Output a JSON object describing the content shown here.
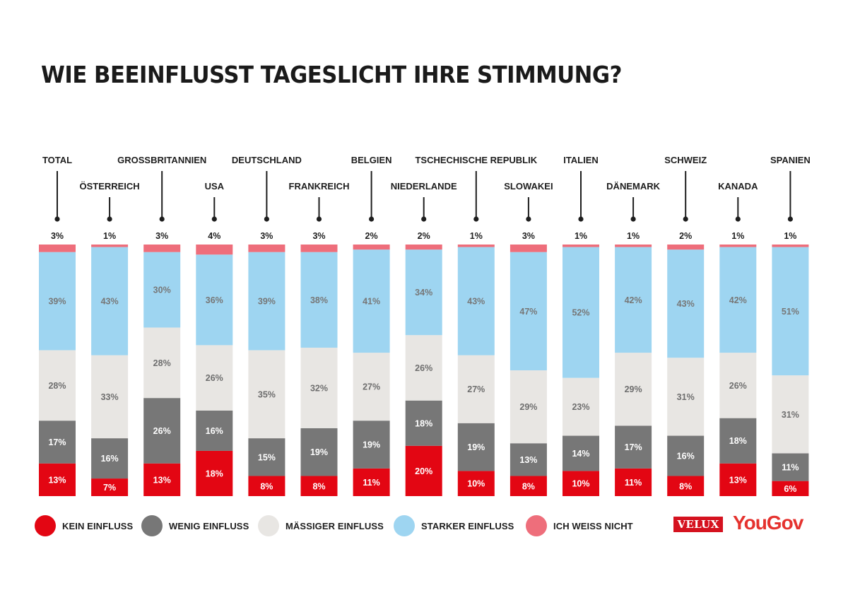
{
  "header": {
    "title": "WIE BEEINFLUSST TAGESLICHT IHRE STIMMUNG?"
  },
  "colors": {
    "kein": "#e30613",
    "wenig": "#777777",
    "maessig": "#e8e6e3",
    "stark": "#9ed5f1",
    "weissnicht": "#ee6e7b"
  },
  "legend": [
    {
      "key": "kein",
      "label": "KEIN EINFLUSS"
    },
    {
      "key": "wenig",
      "label": "WENIG EINFLUSS"
    },
    {
      "key": "maessig",
      "label": "MÄSSIGER EINFLUSS"
    },
    {
      "key": "stark",
      "label": "STARKER EINFLUSS"
    },
    {
      "key": "weissnicht",
      "label": "ICH WEISS NICHT"
    }
  ],
  "logos": {
    "velux": "VELUX",
    "yougov": "YouGov"
  },
  "chart_data": {
    "type": "bar",
    "stacked": true,
    "orientation": "vertical",
    "title": "WIE BEEINFLUSST TAGESLICHT IHRE STIMMUNG?",
    "unit": "%",
    "categories": [
      "TOTAL",
      "ÖSTERREICH",
      "GROSSBRITANNIEN",
      "USA",
      "DEUTSCHLAND",
      "FRANKREICH",
      "BELGIEN",
      "NIEDERLANDE",
      "TSCHECHISCHE REPUBLIK",
      "SLOWAKEI",
      "ITALIEN",
      "DÄNEMARK",
      "SCHWEIZ",
      "KANADA",
      "SPANIEN"
    ],
    "series": [
      {
        "key": "kein",
        "name": "KEIN EINFLUSS",
        "values": [
          13,
          7,
          13,
          18,
          8,
          8,
          11,
          20,
          10,
          8,
          10,
          11,
          8,
          13,
          6
        ]
      },
      {
        "key": "wenig",
        "name": "WENIG EINFLUSS",
        "values": [
          17,
          16,
          26,
          16,
          15,
          19,
          19,
          18,
          19,
          13,
          14,
          17,
          16,
          18,
          11
        ]
      },
      {
        "key": "maessig",
        "name": "MÄSSIGER EINFLUSS",
        "values": [
          28,
          33,
          28,
          26,
          35,
          32,
          27,
          26,
          27,
          29,
          23,
          29,
          31,
          26,
          31
        ]
      },
      {
        "key": "stark",
        "name": "STARKER EINFLUSS",
        "values": [
          39,
          43,
          30,
          36,
          39,
          38,
          41,
          34,
          43,
          47,
          52,
          42,
          43,
          42,
          51
        ]
      },
      {
        "key": "weissnicht",
        "name": "ICH WEISS NICHT",
        "values": [
          3,
          1,
          3,
          4,
          3,
          3,
          2,
          2,
          1,
          3,
          1,
          1,
          2,
          1,
          1
        ]
      }
    ],
    "ylim": [
      0,
      100
    ],
    "legend_position": "bottom"
  }
}
